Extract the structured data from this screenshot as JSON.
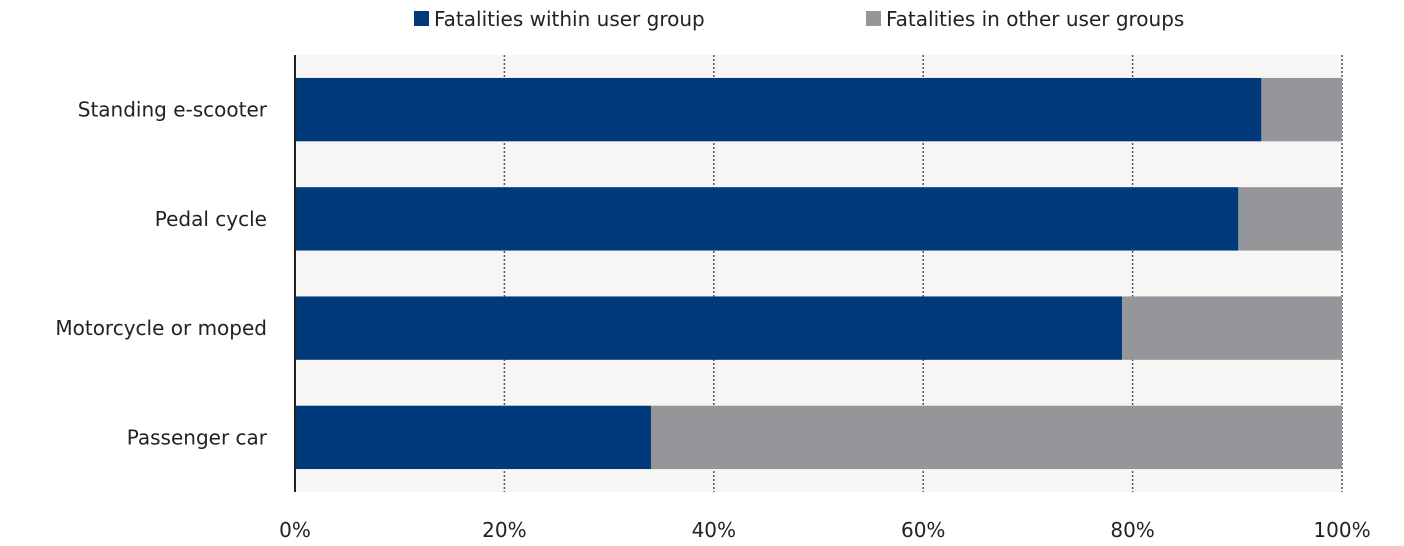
{
  "chart_data": {
    "type": "bar",
    "orientation": "horizontal",
    "stacked": true,
    "categories": [
      "Standing e-scooter",
      "Pedal cycle",
      "Motorcycle or moped",
      "Passenger car"
    ],
    "series": [
      {
        "name": "Fatalities within user group",
        "values": [
          92.3,
          90.1,
          79.0,
          34.0
        ],
        "color": "#003a7a"
      },
      {
        "name": "Fatalities in other user groups",
        "values": [
          7.7,
          9.9,
          21.0,
          66.0
        ],
        "color": "#949699"
      }
    ],
    "xlim": [
      0,
      100
    ],
    "x_ticks": [
      0,
      20,
      40,
      60,
      80,
      100
    ],
    "x_tick_labels": [
      "0%",
      "20%",
      "40%",
      "60%",
      "80%",
      "100%"
    ],
    "grid": "vertical-dotted",
    "legend_position": "top-center",
    "plot_background": "#f7f6f5"
  }
}
